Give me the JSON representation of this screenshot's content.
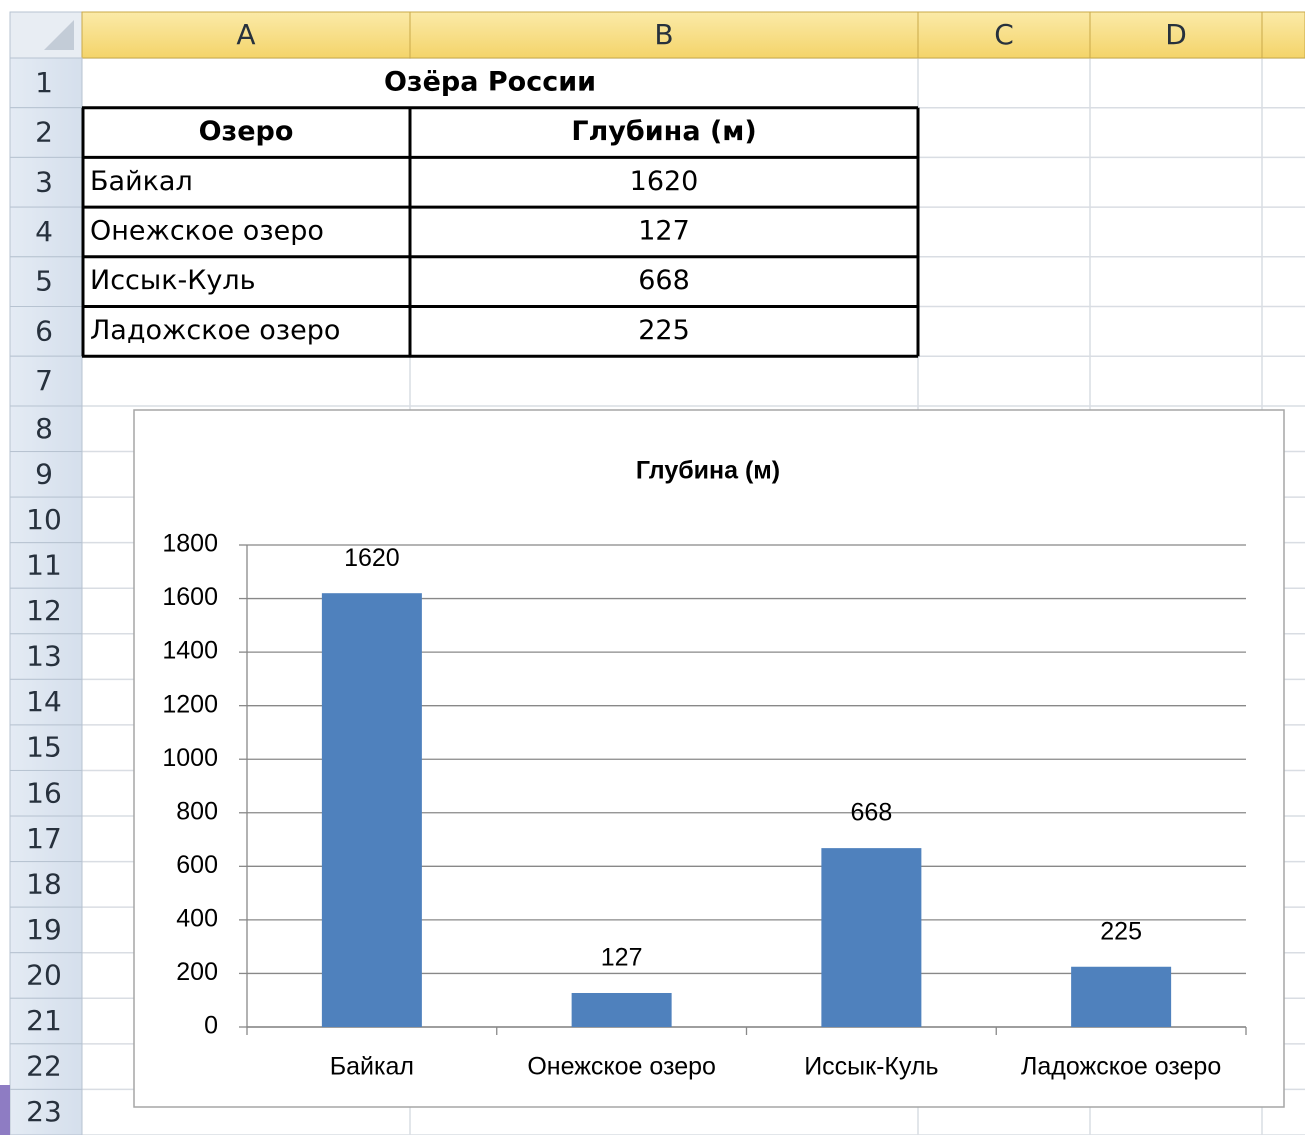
{
  "columns": [
    "A",
    "B",
    "C",
    "D"
  ],
  "rows": [
    1,
    2,
    3,
    4,
    5,
    6,
    7,
    8,
    9,
    10,
    11,
    12,
    13,
    14,
    15,
    16,
    17,
    18,
    19,
    20,
    21,
    22,
    23
  ],
  "table": {
    "title": "Озёра России",
    "header": [
      "Озеро",
      "Глубина (м)"
    ],
    "rows": [
      [
        "Байкал",
        1620
      ],
      [
        "Онежское озеро",
        127
      ],
      [
        "Иссык-Куль",
        668
      ],
      [
        "Ладожское озеро",
        225
      ]
    ]
  },
  "chart_data": {
    "type": "bar",
    "title": "Глубина (м)",
    "categories": [
      "Байкал",
      "Онежское озеро",
      "Иссык-Куль",
      "Ладожское озеро"
    ],
    "values": [
      1620,
      127,
      668,
      225
    ],
    "color": "#4f81bd",
    "ylim": [
      0,
      1800
    ],
    "yticks": [
      0,
      200,
      400,
      600,
      800,
      1000,
      1200,
      1400,
      1600,
      1800
    ],
    "grid": true
  }
}
